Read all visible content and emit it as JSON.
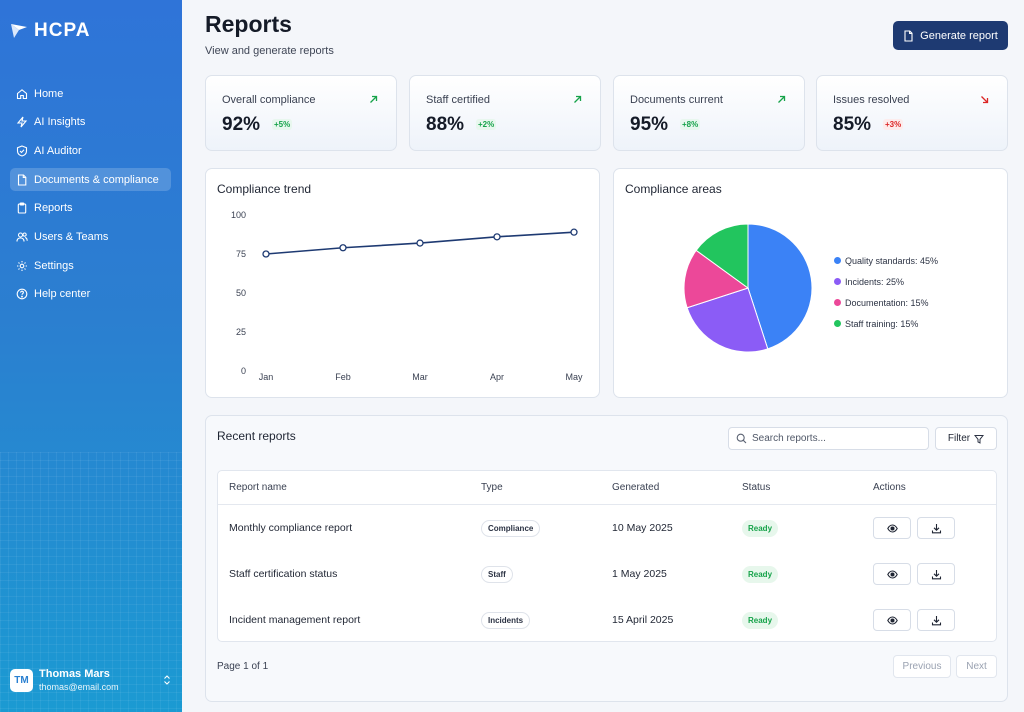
{
  "brand": {
    "name": "HCPA"
  },
  "sidebar": {
    "items": [
      {
        "label": "Home",
        "icon": "home-icon"
      },
      {
        "label": "AI Insights",
        "icon": "bolt-icon"
      },
      {
        "label": "AI Auditor",
        "icon": "shield-icon"
      },
      {
        "label": "Documents & compliance",
        "icon": "document-icon",
        "active": true
      },
      {
        "label": "Reports",
        "icon": "clipboard-icon"
      },
      {
        "label": "Users & Teams",
        "icon": "users-icon"
      },
      {
        "label": "Settings",
        "icon": "gear-icon"
      },
      {
        "label": "Help center",
        "icon": "help-icon"
      }
    ]
  },
  "user": {
    "initials": "TM",
    "name": "Thomas Mars",
    "email": "thomas@email.com"
  },
  "header": {
    "title": "Reports",
    "subtitle": "View and generate reports",
    "generate_label": "Generate report"
  },
  "kpis": [
    {
      "label": "Overall compliance",
      "value": "92%",
      "delta": "+5%",
      "trend": "up"
    },
    {
      "label": "Staff certified",
      "value": "88%",
      "delta": "+2%",
      "trend": "up"
    },
    {
      "label": "Documents current",
      "value": "95%",
      "delta": "+8%",
      "trend": "up"
    },
    {
      "label": "Issues resolved",
      "value": "85%",
      "delta": "+3%",
      "trend": "down"
    }
  ],
  "colors": {
    "accent": "#1e3a72",
    "line": "#1e3a72",
    "positive": "#16a34a",
    "negative": "#dc2626",
    "pie": [
      "#3b82f6",
      "#8b5cf6",
      "#ec4899",
      "#22c55e"
    ]
  },
  "trend_panel": {
    "title": "Compliance trend"
  },
  "areas_panel": {
    "title": "Compliance areas"
  },
  "chart_data": [
    {
      "type": "line",
      "title": "Compliance trend",
      "categories": [
        "Jan",
        "Feb",
        "Mar",
        "Apr",
        "May"
      ],
      "values": [
        75,
        79,
        82,
        86,
        89
      ],
      "yticks": [
        0,
        25,
        50,
        75,
        100
      ],
      "ylim": [
        0,
        100
      ],
      "grid": false
    },
    {
      "type": "pie",
      "title": "Compliance areas",
      "labels": [
        "Quality standards",
        "Incidents",
        "Documentation",
        "Staff training"
      ],
      "values": [
        45,
        25,
        15,
        15
      ],
      "legend_text": [
        "Quality standards: 45%",
        "Incidents: 25%",
        "Documentation: 15%",
        "Staff training: 15%"
      ],
      "legend": "right"
    }
  ],
  "reports": {
    "title": "Recent reports",
    "search_placeholder": "Search reports...",
    "filter_label": "Filter",
    "columns": [
      "Report name",
      "Type",
      "Generated",
      "Status",
      "Actions"
    ],
    "rows": [
      {
        "name": "Monthly compliance report",
        "type": "Compliance",
        "generated": "10 May 2025",
        "status": "Ready"
      },
      {
        "name": "Staff certification status",
        "type": "Staff",
        "generated": "1 May 2025",
        "status": "Ready"
      },
      {
        "name": "Incident management report",
        "type": "Incidents",
        "generated": "15 April 2025",
        "status": "Ready"
      }
    ],
    "page_text": "Page 1 of 1",
    "previous_label": "Previous",
    "next_label": "Next"
  }
}
